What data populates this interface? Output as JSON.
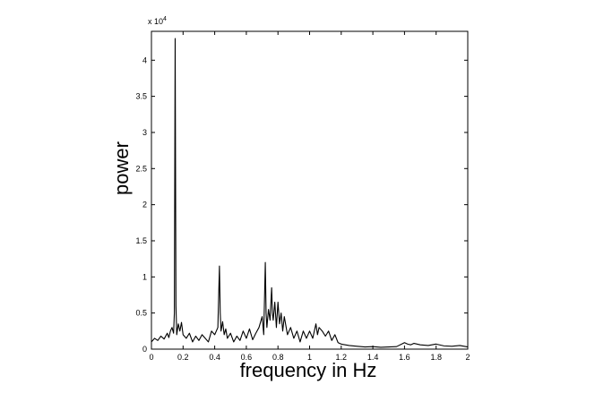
{
  "chart_data": {
    "type": "line",
    "xlabel": "frequency in Hz",
    "ylabel": "power",
    "y_exponent_label": "x 10",
    "y_exponent_power": "4",
    "xlim": [
      0,
      2.0
    ],
    "ylim": [
      0,
      44000
    ],
    "grid": false,
    "x_ticks": [
      0,
      0.2,
      0.4,
      0.6,
      0.8,
      1.0,
      1.2,
      1.4,
      1.6,
      1.8,
      2.0
    ],
    "x_tick_labels": [
      "0",
      "0.2",
      "0.4",
      "0.6",
      "0.8",
      "1",
      "1.2",
      "1.4",
      "1.6",
      "1.8",
      "2"
    ],
    "y_ticks": [
      0,
      5000,
      10000,
      15000,
      20000,
      25000,
      30000,
      35000,
      40000
    ],
    "y_tick_labels": [
      "0",
      "0.5",
      "1",
      "1.5",
      "2",
      "2.5",
      "3",
      "3.5",
      "4"
    ],
    "series": [
      {
        "color": "#000000",
        "x": [
          0.0,
          0.02,
          0.04,
          0.06,
          0.08,
          0.1,
          0.11,
          0.12,
          0.13,
          0.14,
          0.145,
          0.15,
          0.155,
          0.16,
          0.17,
          0.18,
          0.19,
          0.2,
          0.22,
          0.24,
          0.26,
          0.28,
          0.3,
          0.32,
          0.34,
          0.36,
          0.38,
          0.4,
          0.42,
          0.43,
          0.435,
          0.44,
          0.45,
          0.46,
          0.47,
          0.48,
          0.5,
          0.52,
          0.54,
          0.56,
          0.58,
          0.6,
          0.62,
          0.64,
          0.66,
          0.68,
          0.7,
          0.71,
          0.72,
          0.725,
          0.73,
          0.74,
          0.75,
          0.76,
          0.765,
          0.77,
          0.78,
          0.79,
          0.8,
          0.81,
          0.82,
          0.83,
          0.84,
          0.86,
          0.88,
          0.9,
          0.92,
          0.94,
          0.96,
          0.98,
          1.0,
          1.02,
          1.04,
          1.05,
          1.06,
          1.08,
          1.1,
          1.12,
          1.14,
          1.16,
          1.18,
          1.2,
          1.25,
          1.3,
          1.35,
          1.4,
          1.45,
          1.5,
          1.55,
          1.6,
          1.62,
          1.64,
          1.66,
          1.7,
          1.75,
          1.8,
          1.85,
          1.9,
          1.95,
          2.0
        ],
        "y": [
          1000,
          1500,
          1200,
          1800,
          1400,
          2200,
          1600,
          2500,
          3000,
          2200,
          5000,
          43000,
          6000,
          2000,
          3500,
          2500,
          3700,
          2000,
          1500,
          2200,
          1000,
          1800,
          1200,
          2000,
          1500,
          1000,
          2500,
          2000,
          3000,
          11500,
          5000,
          2500,
          3800,
          2000,
          2800,
          1500,
          2200,
          1000,
          1800,
          1200,
          2500,
          1500,
          2800,
          1300,
          2200,
          3000,
          4500,
          2000,
          12000,
          5000,
          3000,
          5500,
          4000,
          8500,
          5000,
          4000,
          6500,
          3000,
          6500,
          3500,
          5000,
          2500,
          4500,
          2000,
          3000,
          1500,
          2500,
          1000,
          2500,
          1500,
          2500,
          1500,
          3500,
          2000,
          3000,
          2500,
          1800,
          2500,
          1200,
          2000,
          900,
          700,
          500,
          400,
          300,
          350,
          250,
          300,
          350,
          900,
          700,
          600,
          800,
          600,
          500,
          700,
          450,
          400,
          500,
          300
        ]
      }
    ]
  }
}
